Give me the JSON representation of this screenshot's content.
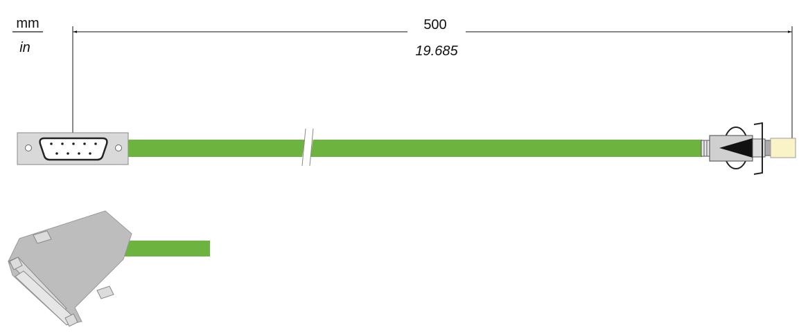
{
  "units": {
    "primary": "mm",
    "secondary": "in"
  },
  "dimension": {
    "primary": "500",
    "secondary": "19.685"
  }
}
